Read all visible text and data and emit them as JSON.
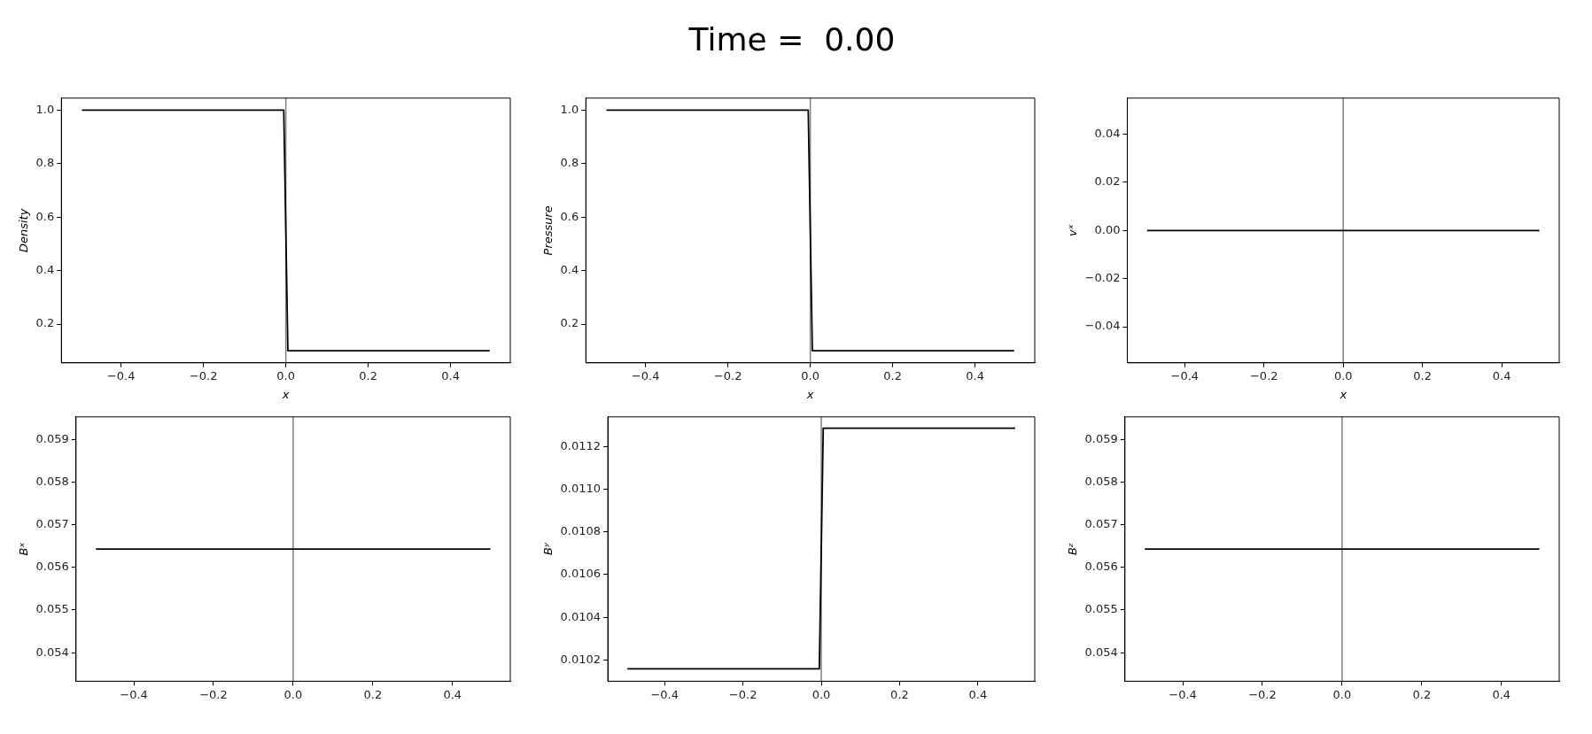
{
  "chart_data": [
    {
      "type": "line",
      "xlabel": "x",
      "ylabel": "Density",
      "x": [
        -0.495,
        -0.005,
        0.005,
        0.495
      ],
      "series": [
        {
          "color": "#000000",
          "values": [
            1.0,
            1.0,
            0.1,
            0.1
          ]
        }
      ],
      "xlim": [
        -0.545,
        0.545
      ],
      "xticks": [
        {
          "value": -0.4,
          "label": "−0.4"
        },
        {
          "value": -0.2,
          "label": "−0.2"
        },
        {
          "value": 0,
          "label": "0.0"
        },
        {
          "value": 0.2,
          "label": "0.2"
        },
        {
          "value": 0.4,
          "label": "0.4"
        }
      ],
      "ylim": [
        0.055,
        1.045
      ],
      "yticks": [
        0.2,
        0.4,
        0.6,
        0.8,
        {
          "value": 1,
          "label": "1.0"
        }
      ],
      "ref_lines": [
        {
          "axis": "x",
          "value": 0,
          "color": "#808080"
        }
      ],
      "grid": false,
      "legend": false
    },
    {
      "type": "line",
      "title": "Time =  0.00",
      "xlabel": "x",
      "ylabel": "Pressure",
      "x": [
        -0.495,
        -0.005,
        0.005,
        0.495
      ],
      "series": [
        {
          "color": "#000000",
          "values": [
            1.0,
            1.0,
            0.1,
            0.1
          ]
        }
      ],
      "xlim": [
        -0.545,
        0.545
      ],
      "xticks": [
        {
          "value": -0.4,
          "label": "−0.4"
        },
        {
          "value": -0.2,
          "label": "−0.2"
        },
        {
          "value": 0,
          "label": "0.0"
        },
        {
          "value": 0.2,
          "label": "0.2"
        },
        {
          "value": 0.4,
          "label": "0.4"
        }
      ],
      "ylim": [
        0.055,
        1.045
      ],
      "yticks": [
        0.2,
        0.4,
        0.6,
        0.8,
        {
          "value": 1,
          "label": "1.0"
        }
      ],
      "ref_lines": [
        {
          "axis": "x",
          "value": 0,
          "color": "#808080"
        }
      ],
      "grid": false,
      "legend": false
    },
    {
      "type": "line",
      "xlabel": "x",
      "ylabel": "vˣ",
      "x": [
        -0.495,
        0.495
      ],
      "series": [
        {
          "color": "#000000",
          "values": [
            0,
            0
          ]
        }
      ],
      "xlim": [
        -0.545,
        0.545
      ],
      "xticks": [
        {
          "value": -0.4,
          "label": "−0.4"
        },
        {
          "value": -0.2,
          "label": "−0.2"
        },
        {
          "value": 0,
          "label": "0.0"
        },
        {
          "value": 0.2,
          "label": "0.2"
        },
        {
          "value": 0.4,
          "label": "0.4"
        }
      ],
      "ylim": [
        -0.055,
        0.055
      ],
      "yticks": [
        {
          "value": -0.04,
          "label": "−0.04"
        },
        {
          "value": -0.02,
          "label": "−0.02"
        },
        {
          "value": 0,
          "label": "0.00"
        },
        0.02,
        0.04
      ],
      "ref_lines": [
        {
          "axis": "x",
          "value": 0,
          "color": "#808080"
        }
      ],
      "grid": false,
      "legend": false
    },
    {
      "type": "line",
      "ylabel": "Bˣ",
      "x": [
        -0.495,
        0.495
      ],
      "series": [
        {
          "color": "#000000",
          "values": [
            0.05643,
            0.05643
          ]
        }
      ],
      "xlim": [
        -0.545,
        0.545
      ],
      "xticks": [
        {
          "value": -0.4,
          "label": "−0.4"
        },
        {
          "value": -0.2,
          "label": "−0.2"
        },
        {
          "value": 0,
          "label": "0.0"
        },
        {
          "value": 0.2,
          "label": "0.2"
        },
        {
          "value": 0.4,
          "label": "0.4"
        }
      ],
      "ylim": [
        0.05333,
        0.05953
      ],
      "yticks": [
        0.054,
        0.055,
        0.056,
        0.057,
        0.058,
        0.059
      ],
      "ref_lines": [
        {
          "axis": "x",
          "value": 0,
          "color": "#808080"
        }
      ],
      "grid": false,
      "legend": false
    },
    {
      "type": "line",
      "ylabel": "Bʸ",
      "x": [
        -0.495,
        -0.005,
        0.005,
        0.495
      ],
      "series": [
        {
          "color": "#000000",
          "values": [
            0.010158,
            0.010158,
            0.011287,
            0.011287
          ]
        }
      ],
      "xlim": [
        -0.545,
        0.545
      ],
      "xticks": [
        {
          "value": -0.4,
          "label": "−0.4"
        },
        {
          "value": -0.2,
          "label": "−0.2"
        },
        {
          "value": 0,
          "label": "0.0"
        },
        {
          "value": 0.2,
          "label": "0.2"
        },
        {
          "value": 0.4,
          "label": "0.4"
        }
      ],
      "ylim": [
        0.0101,
        0.01134
      ],
      "yticks": [
        0.0102,
        0.0104,
        0.0106,
        0.0108,
        {
          "value": 0.011,
          "label": "0.0110"
        },
        0.0112
      ],
      "ref_lines": [
        {
          "axis": "x",
          "value": 0,
          "color": "#808080"
        }
      ],
      "grid": false,
      "legend": false
    },
    {
      "type": "line",
      "ylabel": "Bᶻ",
      "x": [
        -0.495,
        0.495
      ],
      "series": [
        {
          "color": "#000000",
          "values": [
            0.05643,
            0.05643
          ]
        }
      ],
      "xlim": [
        -0.545,
        0.545
      ],
      "xticks": [
        {
          "value": -0.4,
          "label": "−0.4"
        },
        {
          "value": -0.2,
          "label": "−0.2"
        },
        {
          "value": 0,
          "label": "0.0"
        },
        {
          "value": 0.2,
          "label": "0.2"
        },
        {
          "value": 0.4,
          "label": "0.4"
        }
      ],
      "ylim": [
        0.05333,
        0.05953
      ],
      "yticks": [
        0.054,
        0.055,
        0.056,
        0.057,
        0.058,
        0.059
      ],
      "ref_lines": [
        {
          "axis": "x",
          "value": 0,
          "color": "#808080"
        }
      ],
      "grid": false,
      "legend": false
    }
  ]
}
